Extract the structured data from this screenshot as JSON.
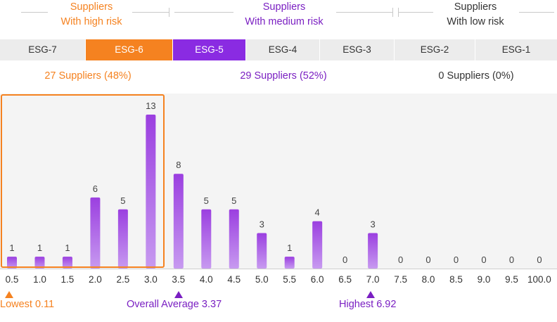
{
  "risk_groups": [
    {
      "title": "Suppliers",
      "subtitle": "With high risk",
      "color": "#f58220"
    },
    {
      "title": "Suppliers",
      "subtitle": "With medium risk",
      "color": "#7a1fc2"
    },
    {
      "title": "Suppliers",
      "subtitle": "With low risk",
      "color": "#333333"
    }
  ],
  "esg_levels": [
    "ESG-7",
    "ESG-6",
    "ESG-5",
    "ESG-4",
    "ESG-3",
    "ESG-2",
    "ESG-1"
  ],
  "esg_highlight": {
    "ESG-6": "high",
    "ESG-5": "medium"
  },
  "counts": [
    {
      "label": "27 Suppliers (48%)",
      "color": "#f58220"
    },
    {
      "label": "29 Suppliers (52%)",
      "color": "#7a1fc2"
    },
    {
      "label": "0 Suppliers (0%)",
      "color": "#333333"
    }
  ],
  "colors": {
    "bar_top": "#9b3fe0",
    "bar_bottom": "#c79af0",
    "high": "#f58220",
    "medium": "#7a1fc2",
    "axis_text": "#333333",
    "value_text": "#444444"
  },
  "chart_data": {
    "type": "bar",
    "categories": [
      "0.5",
      "1.0",
      "1.5",
      "2.0",
      "2.5",
      "3.0",
      "3.5",
      "4.0",
      "4.5",
      "5.0",
      "5.5",
      "6.0",
      "6.5",
      "7.0",
      "7.5",
      "8.0",
      "8.5",
      "9.0",
      "9.5",
      "100.0"
    ],
    "values": [
      1,
      1,
      1,
      6,
      5,
      13,
      8,
      5,
      5,
      3,
      1,
      4,
      0,
      3,
      0,
      0,
      0,
      0,
      0,
      0
    ],
    "ylim": [
      0,
      13
    ],
    "grid": false,
    "highlight_range": [
      "0.5",
      "3.0"
    ]
  },
  "markers": {
    "lowest": {
      "label": "Lowest 0.11",
      "value": 0.11
    },
    "average": {
      "label": "Overall Average 3.37",
      "value": 3.37
    },
    "highest": {
      "label": "Highest 6.92",
      "value": 6.92
    }
  }
}
